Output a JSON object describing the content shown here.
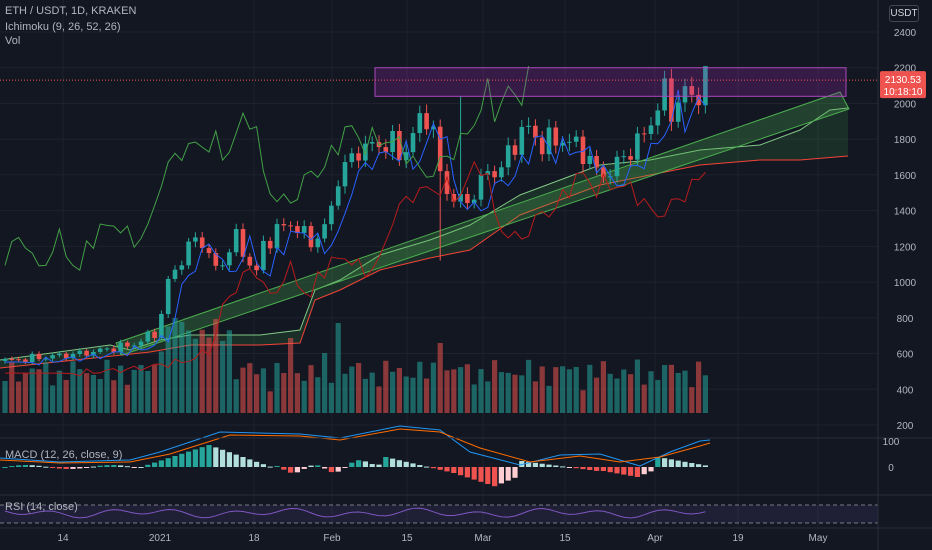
{
  "header": {
    "symbol_line": "ETH / USDT, 1D, KRAKEN",
    "ichimoku_label": "Ichimoku (9, 26, 52, 26)",
    "vol_label": "Vol",
    "currency": "USDT"
  },
  "price_scale": {
    "ticks": [
      "2400",
      "2200",
      "2000",
      "1800",
      "1600",
      "1400",
      "1200",
      "1000",
      "800",
      "600",
      "400",
      "200"
    ],
    "last_price": "2130.53",
    "countdown": "10:18:10"
  },
  "macd": {
    "label": "MACD (12, 26, close, 9)",
    "ticks": [
      "100",
      "0"
    ]
  },
  "rsi": {
    "label": "RSI (14, close)"
  },
  "time_axis": {
    "labels": [
      "14",
      "2021",
      "18",
      "Feb",
      "15",
      "Mar",
      "15",
      "Apr",
      "19",
      "May"
    ]
  },
  "colors": {
    "background": "#131722",
    "up": "#26a69a",
    "down": "#ef5350",
    "tenkan": "#2962ff",
    "kijun": "#b71c1c",
    "chikou": "#43a047",
    "span_a": "#81c784",
    "span_b": "#f44336",
    "resistance_box": "#9c27b0",
    "channel": "#4caf50",
    "rsi": "#7e57c2",
    "macd_line": "#2196f3",
    "signal_line": "#ff6d00"
  },
  "chart_data": {
    "type": "candlestick",
    "title": "ETH / USDT, 1D, KRAKEN",
    "ylim": [
      0,
      2500
    ],
    "annotations": [
      {
        "type": "rectangle",
        "label": "resistance zone",
        "low": 2040,
        "high": 2200
      },
      {
        "type": "rising_channel"
      }
    ]
  }
}
